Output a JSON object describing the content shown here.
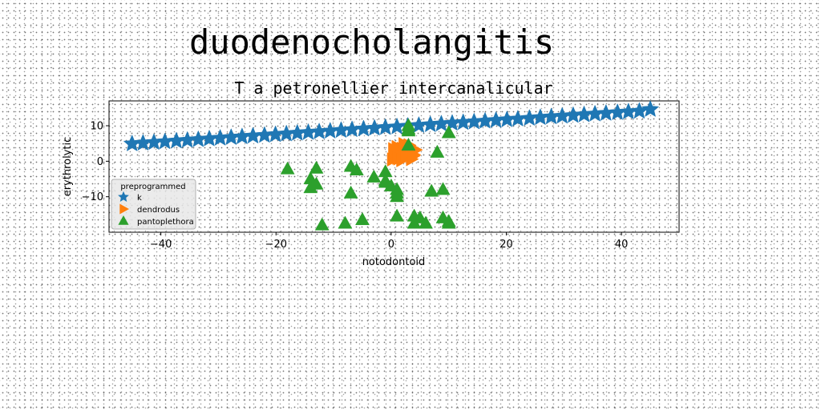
{
  "figure": {
    "title": "duodenocholangitis"
  },
  "chart_data": {
    "type": "scatter",
    "title": "T a petronellier intercanalicular",
    "xlabel": "notodontoid",
    "ylabel": "erythrolytic",
    "xlim": [
      -49,
      50
    ],
    "ylim": [
      -20,
      17
    ],
    "xticks": [
      -40,
      -20,
      0,
      20,
      40
    ],
    "yticks": [
      10,
      0,
      -10
    ],
    "grid": false,
    "legend": {
      "title": "preprogrammed",
      "placement": "lower-left"
    },
    "series": [
      {
        "name": "k",
        "marker": "star",
        "color": "#1f77b4",
        "x": [
          -45,
          -43.1,
          -41.2,
          -39.3,
          -37.3,
          -35.4,
          -33.5,
          -31.6,
          -29.7,
          -27.8,
          -25.9,
          -24,
          -22,
          -20.1,
          -18.2,
          -16.3,
          -14.4,
          -12.5,
          -10.6,
          -8.7,
          -6.8,
          -4.8,
          -2.9,
          -1,
          1,
          2.9,
          4.8,
          6.8,
          8.7,
          10.6,
          12.5,
          14.4,
          16.3,
          18.2,
          20.1,
          22,
          24,
          25.9,
          27.8,
          29.7,
          31.6,
          33.5,
          35.4,
          37.3,
          39.3,
          41.2,
          43.1,
          45
        ],
        "y": [
          4.9,
          5.1,
          5.3,
          5.5,
          5.7,
          5.9,
          6.1,
          6.3,
          6.5,
          6.7,
          6.9,
          7.1,
          7.3,
          7.5,
          7.7,
          7.9,
          8.1,
          8.3,
          8.5,
          8.7,
          8.9,
          9.1,
          9.3,
          9.5,
          9.7,
          9.9,
          10.1,
          10.3,
          10.5,
          10.7,
          10.9,
          11.1,
          11.3,
          11.5,
          11.7,
          11.9,
          12.1,
          12.3,
          12.5,
          12.7,
          12.9,
          13.1,
          13.3,
          13.5,
          13.7,
          13.9,
          14.1,
          14.6
        ]
      },
      {
        "name": "dendrodus",
        "marker": "triangle-right",
        "color": "#ff7f0e",
        "x": [
          0.2,
          0.5,
          0.8,
          1,
          1.3,
          1.6,
          1.9,
          2.2,
          2.6,
          2.9,
          3.2,
          3.5,
          3.9,
          4.2,
          0.4,
          1.1,
          1.8,
          2.5,
          3.1,
          3.8
        ],
        "y": [
          0.5,
          1.5,
          2.8,
          4.0,
          0.8,
          2.2,
          3.5,
          4.8,
          1.2,
          2.6,
          3.9,
          0.6,
          1.8,
          3.2,
          3.4,
          1.0,
          0.3,
          2.0,
          4.5,
          1.5
        ]
      },
      {
        "name": "pantoplethora",
        "marker": "triangle-up",
        "color": "#2ca02c",
        "x": [
          -18,
          -14,
          -14,
          -13,
          -12,
          -8,
          -7,
          -7,
          -6,
          -5,
          -3,
          -1,
          -1,
          0,
          1,
          1,
          1,
          1,
          3,
          3,
          3,
          4,
          4,
          5,
          6,
          7,
          9,
          9,
          10,
          10,
          10,
          -13,
          -1,
          3,
          8
        ],
        "y": [
          -2.2,
          -5,
          -7.5,
          -2,
          -18,
          -17.5,
          -1.5,
          -9,
          -2.5,
          -16.5,
          -4.5,
          -3,
          -6,
          -7,
          -8,
          -9,
          -10,
          -15.5,
          10,
          8.5,
          4.5,
          -15.5,
          -17.5,
          -16,
          -17.5,
          -8.5,
          -8,
          -16,
          -17,
          -17.5,
          8,
          -6.5,
          -5.5,
          9,
          2.5
        ]
      }
    ]
  }
}
